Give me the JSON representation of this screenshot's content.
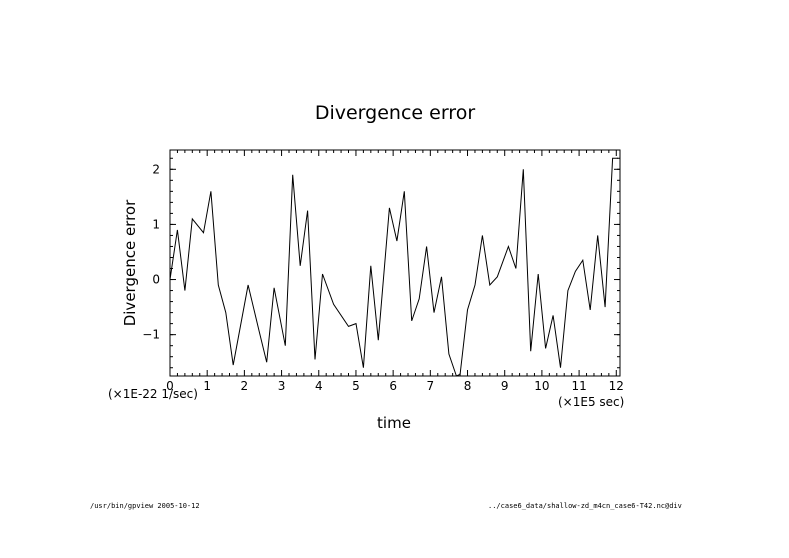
{
  "chart_data": {
    "type": "line",
    "title": "Divergence error",
    "xlabel": "time",
    "ylabel": "Divergence error",
    "x_unit": "(×1E5 sec)",
    "y_unit": "(×1E-22 1/sec)",
    "xlim": [
      0,
      12.1
    ],
    "ylim": [
      -1.75,
      2.35
    ],
    "x_ticks": [
      0,
      1,
      2,
      3,
      4,
      5,
      6,
      7,
      8,
      9,
      10,
      11,
      12
    ],
    "y_ticks": [
      -1,
      0,
      1,
      2
    ],
    "grid": false,
    "series": [
      {
        "x": [
          0.0,
          0.2,
          0.4,
          0.6,
          0.9,
          1.1,
          1.3,
          1.5,
          1.7,
          2.1,
          2.4,
          2.6,
          2.8,
          3.1,
          3.3,
          3.5,
          3.7,
          3.9,
          4.1,
          4.4,
          4.8,
          5.0,
          5.2,
          5.4,
          5.6,
          5.9,
          6.1,
          6.3,
          6.5,
          6.7,
          6.9,
          7.1,
          7.3,
          7.5,
          7.7,
          7.8,
          8.0,
          8.2,
          8.4,
          8.6,
          8.8,
          9.1,
          9.3,
          9.5,
          9.7,
          9.9,
          10.1,
          10.3,
          10.5,
          10.7,
          10.9,
          11.1,
          11.3,
          11.5,
          11.7,
          11.9,
          12.05
        ],
        "y": [
          0.0,
          0.9,
          -0.2,
          1.1,
          0.85,
          1.6,
          -0.1,
          -0.6,
          -1.55,
          -0.1,
          -0.95,
          -1.5,
          -0.15,
          -1.2,
          1.9,
          0.25,
          1.25,
          -1.45,
          0.1,
          -0.45,
          -0.85,
          -0.8,
          -1.6,
          0.25,
          -1.1,
          1.3,
          0.7,
          1.6,
          -0.75,
          -0.35,
          0.6,
          -0.6,
          0.05,
          -1.35,
          -1.75,
          -1.72,
          -0.55,
          -0.1,
          0.8,
          -0.1,
          0.05,
          0.6,
          0.2,
          2.0,
          -1.3,
          0.1,
          -1.25,
          -0.65,
          -1.6,
          -0.2,
          0.15,
          0.35,
          -0.55,
          0.8,
          -0.5,
          2.2,
          2.2
        ]
      }
    ]
  },
  "footer": {
    "left": "/usr/bin/gpview  2005-10-12",
    "right": "../case6_data/shallow-zd_m4cn_case6-T42.nc@div"
  }
}
